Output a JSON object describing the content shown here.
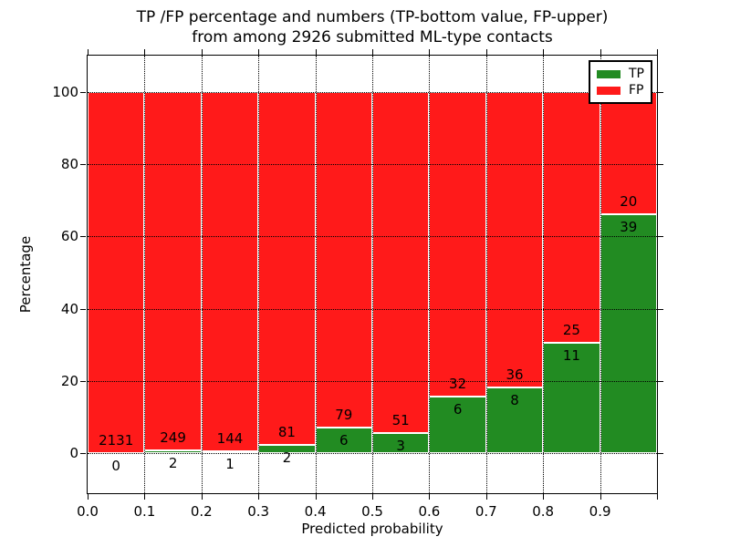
{
  "chart_data": {
    "type": "bar",
    "stacked": true,
    "units": "percent",
    "title": "TP /FP percentage and numbers (TP-bottom value, FP-upper)\nfrom among 2926 submitted ML-type contacts",
    "title_line1": "TP /FP percentage and numbers (TP-bottom value, FP-upper)",
    "title_line2": "from among 2926 submitted ML-type contacts",
    "xlabel": "Predicted probability",
    "ylabel": "Percentage",
    "total_contacts": 2926,
    "bin_width": 0.1,
    "bins": [
      "0.0-0.1",
      "0.1-0.2",
      "0.2-0.3",
      "0.3-0.4",
      "0.4-0.5",
      "0.5-0.6",
      "0.6-0.7",
      "0.7-0.8",
      "0.8-0.9",
      "0.9-1.0"
    ],
    "series": [
      {
        "name": "TP",
        "color": "#228b22",
        "counts": [
          0,
          2,
          1,
          2,
          6,
          3,
          6,
          8,
          11,
          39
        ],
        "percent_of_bin": [
          0.0,
          0.8,
          0.7,
          2.4,
          7.1,
          5.6,
          15.8,
          18.2,
          30.6,
          66.1
        ]
      },
      {
        "name": "FP",
        "color": "#ff1a1a",
        "counts": [
          2131,
          249,
          144,
          81,
          79,
          51,
          32,
          36,
          25,
          20
        ],
        "percent_of_bin": [
          100.0,
          99.2,
          99.3,
          97.6,
          92.9,
          94.4,
          84.2,
          81.8,
          69.4,
          33.9
        ]
      }
    ],
    "x_ticks": [
      "0.0",
      "0.1",
      "0.2",
      "0.3",
      "0.4",
      "0.5",
      "0.6",
      "0.7",
      "0.8",
      "0.9"
    ],
    "y_ticks": [
      0,
      20,
      40,
      60,
      80,
      100
    ],
    "xlim": [
      0.0,
      1.0
    ],
    "ylim": [
      -11,
      110
    ],
    "grid": {
      "style": "dotted",
      "color": "#000000",
      "x": true,
      "y": true
    },
    "legend": {
      "position": "upper right",
      "entries": [
        {
          "label": "TP",
          "color": "#228b22"
        },
        {
          "label": "FP",
          "color": "#ff1a1a"
        }
      ]
    }
  }
}
